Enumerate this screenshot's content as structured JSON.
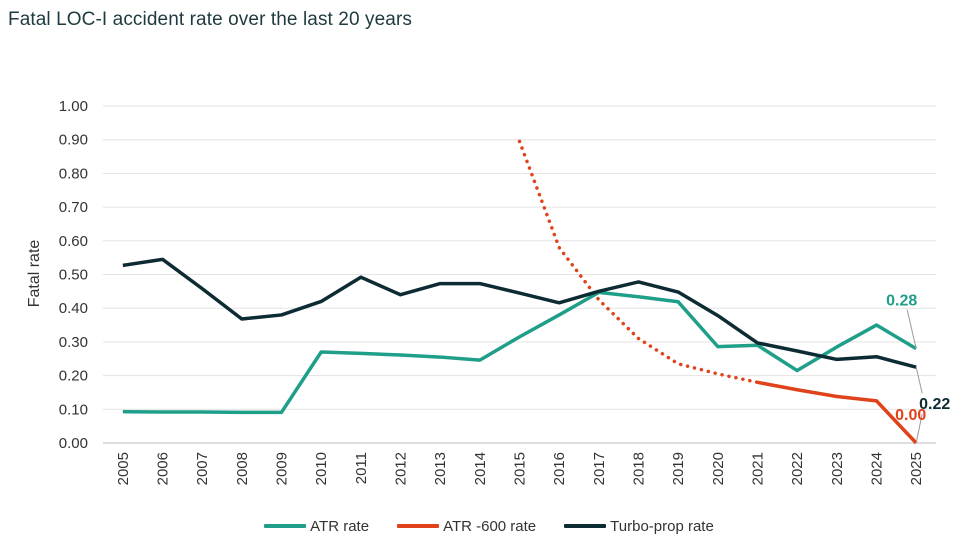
{
  "chart_data": {
    "type": "line",
    "title": "Fatal LOC-I accident rate over the last 20 years",
    "ylabel": "Fatal rate",
    "xlabel": "",
    "ylim": [
      0,
      1.0
    ],
    "yticks": [
      "0.00",
      "0.10",
      "0.20",
      "0.30",
      "0.40",
      "0.50",
      "0.60",
      "0.70",
      "0.80",
      "0.90",
      "1.00"
    ],
    "categories": [
      "2005",
      "2006",
      "2007",
      "2008",
      "2009",
      "2010",
      "2011",
      "2012",
      "2013",
      "2014",
      "2015",
      "2016",
      "2017",
      "2018",
      "2019",
      "2020",
      "2021",
      "2022",
      "2023",
      "2024",
      "2025"
    ],
    "grid": "horizontal",
    "legend_position": "bottom",
    "series": [
      {
        "name": "ATR rate",
        "color": "#1f9e89",
        "values": [
          0.093,
          0.092,
          0.092,
          0.091,
          0.091,
          0.27,
          0.266,
          0.261,
          0.255,
          0.246,
          0.315,
          0.38,
          0.447,
          0.434,
          0.419,
          0.286,
          0.29,
          0.215,
          0.285,
          0.35,
          0.28
        ],
        "end_label": "0.28"
      },
      {
        "name": "ATR -600 rate",
        "color": "#e0421b",
        "values": [
          null,
          null,
          null,
          null,
          null,
          null,
          null,
          null,
          null,
          null,
          0.895,
          0.58,
          0.425,
          0.31,
          0.235,
          0.205,
          0.18,
          0.158,
          0.138,
          0.125,
          0.0
        ],
        "dotted_through": "2021",
        "end_label": "0.00"
      },
      {
        "name": "Turbo-prop rate",
        "color": "#0d2b33",
        "values": [
          0.527,
          0.545,
          0.458,
          0.368,
          0.38,
          0.42,
          0.492,
          0.44,
          0.473,
          0.473,
          0.445,
          0.416,
          0.45,
          0.478,
          0.448,
          0.378,
          0.297,
          0.273,
          0.248,
          0.256,
          0.225
        ],
        "end_label": "0.22"
      }
    ]
  }
}
